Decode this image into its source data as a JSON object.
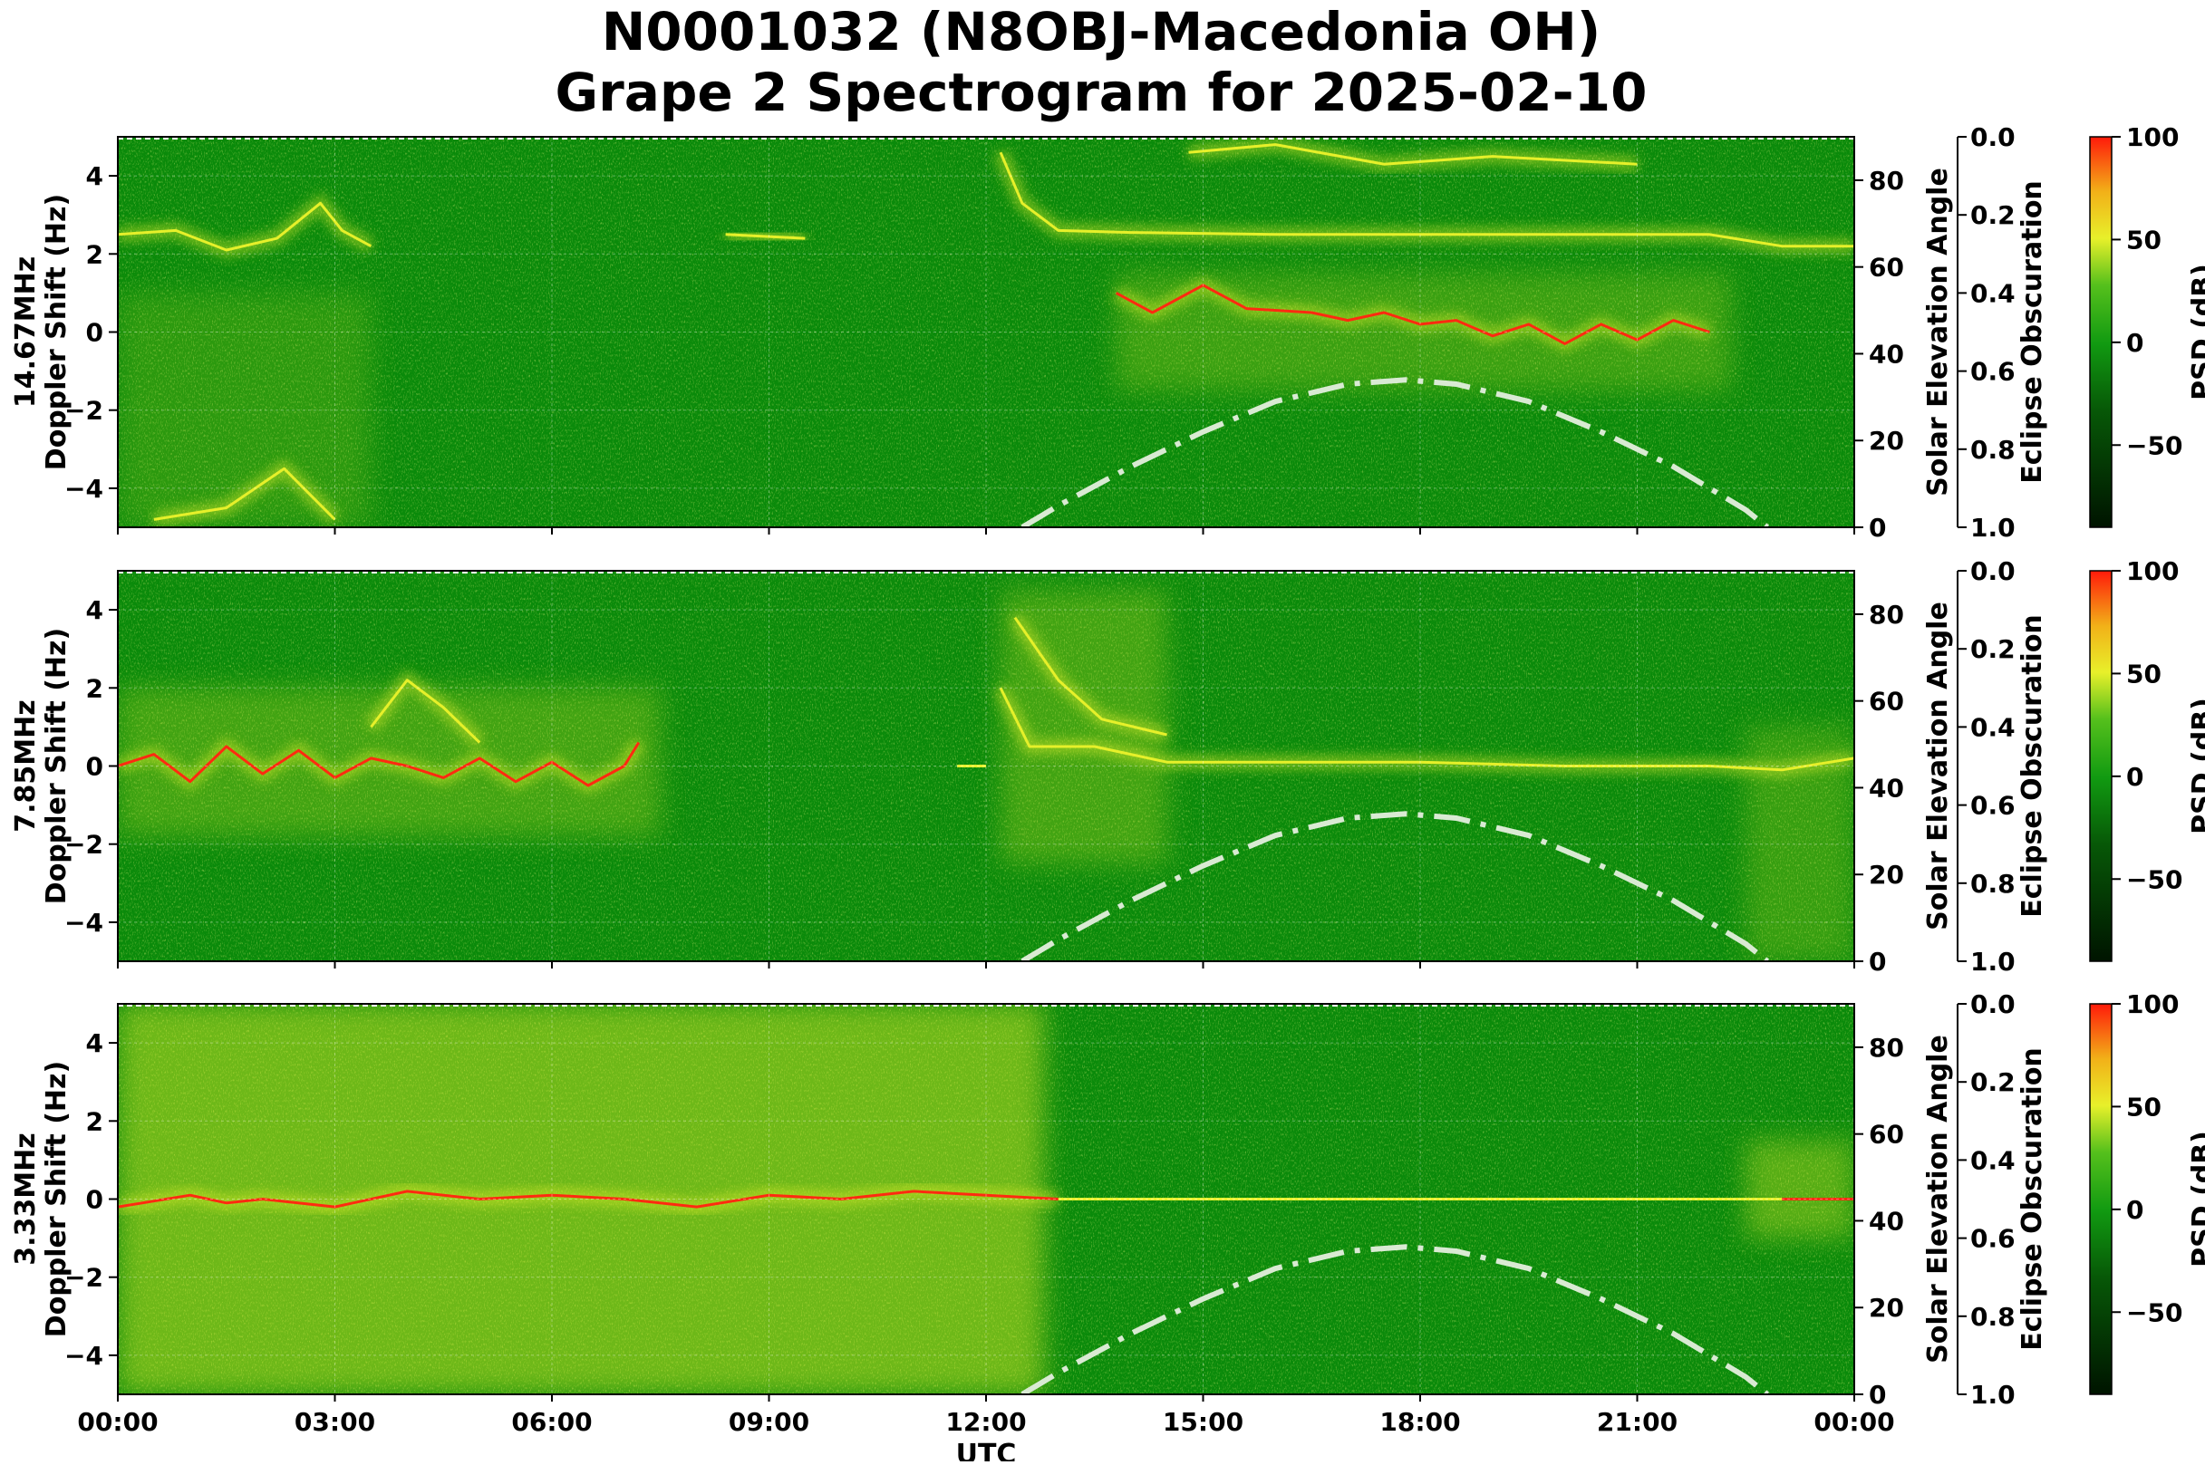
{
  "title": {
    "line1": "N0001032 (N8OBJ-Macedonia OH)",
    "line2": "Grape 2 Spectrogram for 2025-02-10"
  },
  "colors": {
    "background_green": "#0a8a0a",
    "signal_yellow": "#e6f02a",
    "signal_red": "#ff2a10",
    "elevation_curve": "#d9ead3"
  },
  "chart_data": [
    {
      "type": "heatmap",
      "name": "14.67MHz",
      "ylabel": "14.67MHz\nDoppler Shift (Hz)",
      "ylim": [
        -5,
        5
      ],
      "yticks": [
        4,
        2,
        0,
        -2,
        -4
      ],
      "xlim_hours": [
        0,
        24
      ],
      "xticks": [
        "00:00",
        "03:00",
        "06:00",
        "09:00",
        "12:00",
        "15:00",
        "18:00",
        "21:00",
        "00:00"
      ],
      "right_axis_1": {
        "label": "Solar Elevation Angle",
        "ylim": [
          0,
          90
        ],
        "ticks": [
          0,
          20,
          40,
          60,
          80
        ]
      },
      "right_axis_2": {
        "label": "Eclipse Obscuration",
        "ylim": [
          1.0,
          0.0
        ],
        "ticks": [
          "0.0",
          "0.2",
          "0.4",
          "0.6",
          "0.8",
          "1.0"
        ]
      },
      "colorbar": {
        "label": "PSD (dB)",
        "range": [
          -90,
          100
        ],
        "ticks": [
          100,
          50,
          0,
          -50
        ]
      },
      "traces": [
        {
          "level": "yellow",
          "points": [
            [
              0,
              2.5
            ],
            [
              0.8,
              2.6
            ],
            [
              1.5,
              2.1
            ],
            [
              2.2,
              2.4
            ],
            [
              2.8,
              3.3
            ],
            [
              3.1,
              2.6
            ],
            [
              3.5,
              2.2
            ]
          ]
        },
        {
          "level": "yellow",
          "points": [
            [
              8.4,
              2.5
            ],
            [
              9.5,
              2.4
            ]
          ]
        },
        {
          "level": "yellow",
          "points": [
            [
              12.2,
              4.6
            ],
            [
              12.5,
              3.3
            ],
            [
              13.0,
              2.6
            ],
            [
              14,
              2.55
            ],
            [
              16,
              2.5
            ],
            [
              20,
              2.5
            ],
            [
              22,
              2.5
            ],
            [
              23,
              2.2
            ],
            [
              24,
              2.2
            ]
          ]
        },
        {
          "level": "yellow",
          "points": [
            [
              14.8,
              4.6
            ],
            [
              16,
              4.8
            ],
            [
              17.5,
              4.3
            ],
            [
              19,
              4.5
            ],
            [
              21,
              4.3
            ]
          ]
        },
        {
          "level": "red",
          "points": [
            [
              13.8,
              1.0
            ],
            [
              14.3,
              0.5
            ],
            [
              15.0,
              1.2
            ],
            [
              15.6,
              0.6
            ],
            [
              16.5,
              0.5
            ],
            [
              17.0,
              0.3
            ],
            [
              17.5,
              0.5
            ],
            [
              18.0,
              0.2
            ],
            [
              18.5,
              0.3
            ],
            [
              19.0,
              -0.1
            ],
            [
              19.5,
              0.2
            ],
            [
              20.0,
              -0.3
            ],
            [
              20.5,
              0.2
            ],
            [
              21.0,
              -0.2
            ],
            [
              21.5,
              0.3
            ],
            [
              22.0,
              0.0
            ]
          ]
        },
        {
          "level": "yellow",
          "points": [
            [
              0.5,
              -4.8
            ],
            [
              1.5,
              -4.5
            ],
            [
              2.3,
              -3.5
            ],
            [
              3.0,
              -4.8
            ]
          ]
        }
      ],
      "solar_elevation": [
        [
          12.5,
          0
        ],
        [
          13,
          5
        ],
        [
          14,
          14
        ],
        [
          15,
          22
        ],
        [
          16,
          29
        ],
        [
          17,
          33
        ],
        [
          17.8,
          34
        ],
        [
          18.5,
          33
        ],
        [
          19.5,
          29
        ],
        [
          20.5,
          22
        ],
        [
          21.5,
          14
        ],
        [
          22.5,
          4
        ],
        [
          22.8,
          0
        ]
      ]
    },
    {
      "type": "heatmap",
      "name": "7.85MHz",
      "ylabel": "7.85MHz\nDoppler Shift (Hz)",
      "ylim": [
        -5,
        5
      ],
      "yticks": [
        4,
        2,
        0,
        -2,
        -4
      ],
      "xlim_hours": [
        0,
        24
      ],
      "xticks": [
        "00:00",
        "03:00",
        "06:00",
        "09:00",
        "12:00",
        "15:00",
        "18:00",
        "21:00",
        "00:00"
      ],
      "right_axis_1": {
        "label": "Solar Elevation Angle",
        "ylim": [
          0,
          90
        ],
        "ticks": [
          0,
          20,
          40,
          60,
          80
        ]
      },
      "right_axis_2": {
        "label": "Eclipse Obscuration",
        "ylim": [
          1.0,
          0.0
        ],
        "ticks": [
          "0.0",
          "0.2",
          "0.4",
          "0.6",
          "0.8",
          "1.0"
        ]
      },
      "colorbar": {
        "label": "PSD (dB)",
        "range": [
          -90,
          100
        ],
        "ticks": [
          100,
          50,
          0,
          -50
        ]
      },
      "traces": [
        {
          "level": "red",
          "points": [
            [
              0,
              0.0
            ],
            [
              0.5,
              0.3
            ],
            [
              1.0,
              -0.4
            ],
            [
              1.5,
              0.5
            ],
            [
              2.0,
              -0.2
            ],
            [
              2.5,
              0.4
            ],
            [
              3.0,
              -0.3
            ],
            [
              3.5,
              0.2
            ],
            [
              4.0,
              0.0
            ],
            [
              4.5,
              -0.3
            ],
            [
              5.0,
              0.2
            ],
            [
              5.5,
              -0.4
            ],
            [
              6.0,
              0.1
            ],
            [
              6.5,
              -0.5
            ],
            [
              7.0,
              0.0
            ],
            [
              7.2,
              0.6
            ]
          ]
        },
        {
          "level": "yellow",
          "points": [
            [
              3.5,
              1.0
            ],
            [
              4.0,
              2.2
            ],
            [
              4.5,
              1.5
            ],
            [
              5.0,
              0.6
            ]
          ]
        },
        {
          "level": "yellow",
          "points": [
            [
              11.6,
              0.0
            ],
            [
              12.0,
              0.0
            ]
          ]
        },
        {
          "level": "yellow",
          "points": [
            [
              12.2,
              2.0
            ],
            [
              12.6,
              0.5
            ],
            [
              13.5,
              0.5
            ],
            [
              14.0,
              0.3
            ],
            [
              14.5,
              0.1
            ],
            [
              16,
              0.1
            ],
            [
              18,
              0.1
            ],
            [
              20,
              0.0
            ],
            [
              22,
              0.0
            ],
            [
              23,
              -0.1
            ],
            [
              24,
              0.2
            ]
          ]
        },
        {
          "level": "yellow",
          "points": [
            [
              12.4,
              3.8
            ],
            [
              13.0,
              2.2
            ],
            [
              13.6,
              1.2
            ],
            [
              14.5,
              0.8
            ]
          ]
        }
      ],
      "solar_elevation": [
        [
          12.5,
          0
        ],
        [
          13,
          5
        ],
        [
          14,
          14
        ],
        [
          15,
          22
        ],
        [
          16,
          29
        ],
        [
          17,
          33
        ],
        [
          17.8,
          34
        ],
        [
          18.5,
          33
        ],
        [
          19.5,
          29
        ],
        [
          20.5,
          22
        ],
        [
          21.5,
          14
        ],
        [
          22.5,
          4
        ],
        [
          22.8,
          0
        ]
      ]
    },
    {
      "type": "heatmap",
      "name": "3.33MHz",
      "ylabel": "3.33MHz\nDoppler Shift (Hz)",
      "ylim": [
        -5,
        5
      ],
      "yticks": [
        4,
        2,
        0,
        -2,
        -4
      ],
      "xlim_hours": [
        0,
        24
      ],
      "xticks": [
        "00:00",
        "03:00",
        "06:00",
        "09:00",
        "12:00",
        "15:00",
        "18:00",
        "21:00",
        "00:00"
      ],
      "xlabel": "UTC",
      "right_axis_1": {
        "label": "Solar Elevation Angle",
        "ylim": [
          0,
          90
        ],
        "ticks": [
          0,
          20,
          40,
          60,
          80
        ]
      },
      "right_axis_2": {
        "label": "Eclipse Obscuration",
        "ylim": [
          1.0,
          0.0
        ],
        "ticks": [
          "0.0",
          "0.2",
          "0.4",
          "0.6",
          "0.8",
          "1.0"
        ]
      },
      "colorbar": {
        "label": "PSD (dB)",
        "range": [
          -90,
          100
        ],
        "ticks": [
          100,
          50,
          0,
          -50
        ]
      },
      "traces": [
        {
          "level": "red",
          "points": [
            [
              0,
              -0.2
            ],
            [
              1,
              0.1
            ],
            [
              1.5,
              -0.1
            ],
            [
              2,
              0.0
            ],
            [
              3,
              -0.2
            ],
            [
              4,
              0.2
            ],
            [
              5,
              0.0
            ],
            [
              6,
              0.1
            ],
            [
              7,
              0.0
            ],
            [
              8,
              -0.2
            ],
            [
              9,
              0.1
            ],
            [
              10,
              0.0
            ],
            [
              11,
              0.2
            ],
            [
              12,
              0.1
            ],
            [
              13,
              0.0
            ]
          ]
        },
        {
          "level": "yellow",
          "points": [
            [
              13,
              0.0
            ],
            [
              16,
              0.0
            ],
            [
              20,
              0.0
            ],
            [
              23,
              0.0
            ]
          ]
        },
        {
          "level": "red",
          "points": [
            [
              23,
              0.0
            ],
            [
              24,
              0.0
            ]
          ]
        }
      ],
      "solar_elevation": [
        [
          12.5,
          0
        ],
        [
          13,
          5
        ],
        [
          14,
          14
        ],
        [
          15,
          22
        ],
        [
          16,
          29
        ],
        [
          17,
          33
        ],
        [
          17.8,
          34
        ],
        [
          18.5,
          33
        ],
        [
          19.5,
          29
        ],
        [
          20.5,
          22
        ],
        [
          21.5,
          14
        ],
        [
          22.5,
          4
        ],
        [
          22.8,
          0
        ]
      ]
    }
  ]
}
